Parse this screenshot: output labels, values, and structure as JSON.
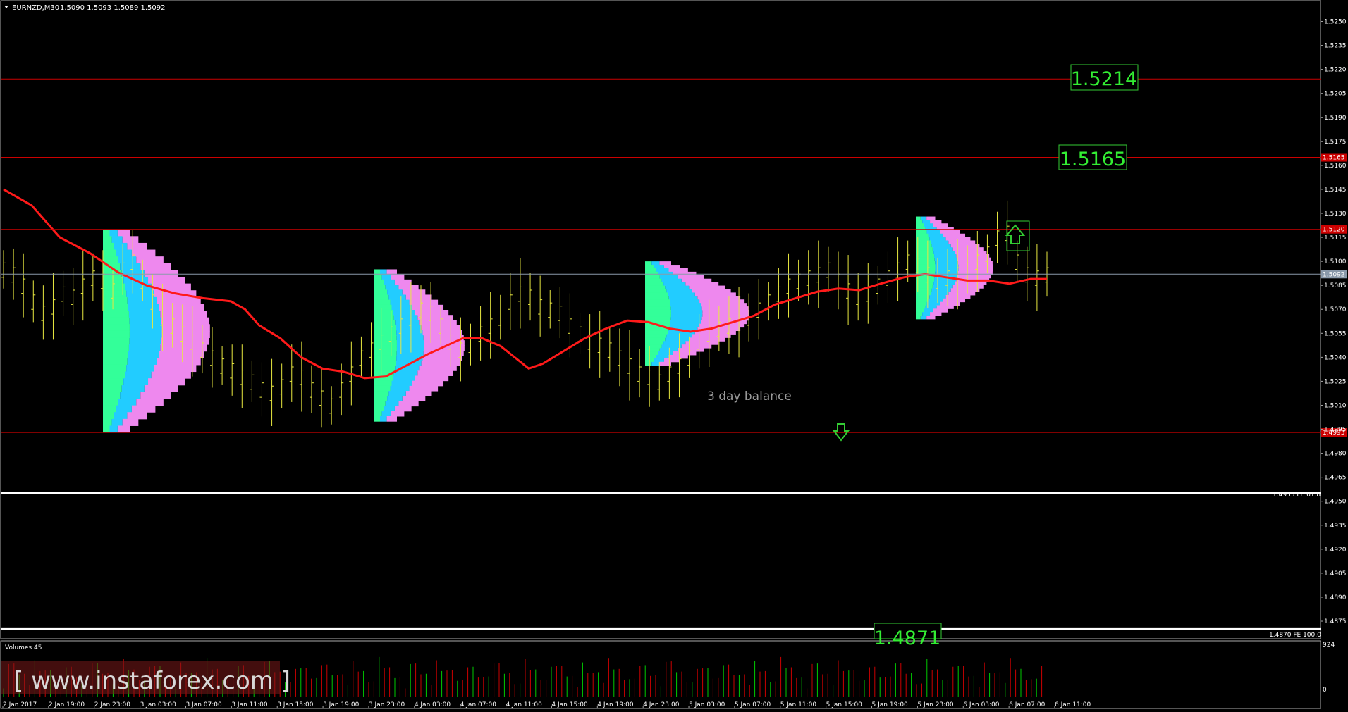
{
  "header": {
    "symbol": "EURNZD,M30",
    "ohlc": "1.5090 1.5093 1.5089 1.5092"
  },
  "annotations": {
    "level_label_1": "1.5214",
    "level_label_2": "1.5165",
    "level_label_3": "1.4871",
    "fe618": "1.4955  FE 61.8",
    "fe100": "1.4870  FE 100.0",
    "balance_text": "3 day balance"
  },
  "volume_panel": {
    "title": "Volumes 45",
    "max_label": "924",
    "zero_label": "0"
  },
  "watermark": "[ www.instaforex.com ]",
  "chart_data": {
    "type": "ohlc",
    "title": "EURNZD,M30",
    "timeframe": "M30",
    "ylim": [
      1.4864,
      1.5263
    ],
    "y_ticks": [
      "1.5250",
      "1.5235",
      "1.5220",
      "1.5205",
      "1.5190",
      "1.5175",
      "1.5160",
      "1.5145",
      "1.5130",
      "1.5115",
      "1.5100",
      "1.5085",
      "1.5070",
      "1.5055",
      "1.5040",
      "1.5025",
      "1.5010",
      "1.4995",
      "1.4980",
      "1.4965",
      "1.4950",
      "1.4935",
      "1.4920",
      "1.4905",
      "1.4890",
      "1.4875"
    ],
    "x_ticks": [
      "2 Jan 2017",
      "2 Jan 19:00",
      "2 Jan 23:00",
      "3 Jan 03:00",
      "3 Jan 07:00",
      "3 Jan 11:00",
      "3 Jan 15:00",
      "3 Jan 19:00",
      "3 Jan 23:00",
      "4 Jan 03:00",
      "4 Jan 07:00",
      "4 Jan 11:00",
      "4 Jan 15:00",
      "4 Jan 19:00",
      "4 Jan 23:00",
      "5 Jan 03:00",
      "5 Jan 07:00",
      "5 Jan 11:00",
      "5 Jan 15:00",
      "5 Jan 19:00",
      "5 Jan 23:00",
      "6 Jan 03:00",
      "6 Jan 07:00",
      "6 Jan 11:00"
    ],
    "horizontal_lines": [
      {
        "price": 1.5214,
        "color": "#cc0000"
      },
      {
        "price": 1.5165,
        "color": "#cc0000",
        "axis_label": "1.5165"
      },
      {
        "price": 1.512,
        "color": "#cc0000",
        "axis_label": "1.5120"
      },
      {
        "price": 1.5092,
        "color": "#8a99aa",
        "axis_label": "1.5092"
      },
      {
        "price": 1.4993,
        "color": "#cc0000",
        "axis_label": "1.4993"
      },
      {
        "price": 1.4955,
        "color": "#ffffff"
      },
      {
        "price": 1.487,
        "color": "#ffffff"
      }
    ],
    "moving_average": {
      "color": "#ff1a1a",
      "points": [
        [
          0,
          1.5145
        ],
        [
          12,
          1.5135
        ],
        [
          24,
          1.5115
        ],
        [
          37,
          1.5105
        ],
        [
          49,
          1.5093
        ],
        [
          61,
          1.5085
        ],
        [
          73,
          1.508
        ],
        [
          85,
          1.5077
        ],
        [
          97,
          1.5075
        ],
        [
          103,
          1.507
        ],
        [
          109,
          1.506
        ],
        [
          118,
          1.5052
        ],
        [
          127,
          1.504
        ],
        [
          136,
          1.5033
        ],
        [
          145,
          1.5031
        ],
        [
          154,
          1.5027
        ],
        [
          163,
          1.5028
        ],
        [
          172,
          1.5035
        ],
        [
          181,
          1.5042
        ],
        [
          190,
          1.5048
        ],
        [
          196,
          1.5052
        ],
        [
          204,
          1.5052
        ],
        [
          212,
          1.5047
        ],
        [
          218,
          1.504
        ],
        [
          224,
          1.5033
        ],
        [
          230,
          1.5036
        ],
        [
          239,
          1.5044
        ],
        [
          248,
          1.5052
        ],
        [
          257,
          1.5058
        ],
        [
          266,
          1.5063
        ],
        [
          275,
          1.5062
        ],
        [
          284,
          1.5058
        ],
        [
          293,
          1.5056
        ],
        [
          302,
          1.5058
        ],
        [
          311,
          1.5062
        ],
        [
          320,
          1.5066
        ],
        [
          329,
          1.5073
        ],
        [
          338,
          1.5077
        ],
        [
          347,
          1.5081
        ],
        [
          356,
          1.5083
        ],
        [
          365,
          1.5082
        ],
        [
          374,
          1.5086
        ],
        [
          384,
          1.509
        ],
        [
          393,
          1.5092
        ],
        [
          402,
          1.509
        ],
        [
          411,
          1.5088
        ],
        [
          420,
          1.5088
        ],
        [
          429,
          1.5086
        ],
        [
          438,
          1.5089
        ],
        [
          445,
          1.5089
        ]
      ]
    },
    "candles_seed": [
      1.5095,
      1.5092,
      1.5085,
      1.5075,
      1.5068,
      1.5072,
      1.508,
      1.5078,
      1.5085,
      1.509,
      1.5088,
      1.5082,
      1.5095,
      1.51,
      1.5088,
      1.5075,
      1.5065,
      1.506,
      1.5055,
      1.505,
      1.5045,
      1.504,
      1.5035,
      1.5032,
      1.5028,
      1.5025,
      1.502,
      1.5018,
      1.5022,
      1.503,
      1.5028,
      1.502,
      1.5015,
      1.501,
      1.502,
      1.503,
      1.504,
      1.5045,
      1.505,
      1.5055,
      1.506,
      1.5065,
      1.507,
      1.5068,
      1.506,
      1.505,
      1.5045,
      1.5048,
      1.5055,
      1.506,
      1.5065,
      1.5075,
      1.508,
      1.5078,
      1.5072,
      1.507,
      1.5068,
      1.506,
      1.5055,
      1.505,
      1.5048,
      1.5045,
      1.504,
      1.5035,
      1.503,
      1.5028,
      1.5025,
      1.503,
      1.5035,
      1.504,
      1.505,
      1.5055,
      1.5058,
      1.506,
      1.5062,
      1.5065,
      1.507,
      1.5075,
      1.508,
      1.5085,
      1.5088,
      1.509,
      1.5092,
      1.5095,
      1.5088,
      1.5082,
      1.5078,
      1.508,
      1.5085,
      1.509,
      1.5095,
      1.51,
      1.5098,
      1.5092,
      1.5088,
      1.509,
      1.5092,
      1.5095,
      1.51,
      1.5105,
      1.5115,
      1.5118,
      1.51,
      1.5092,
      1.509,
      1.5092
    ],
    "volume_profiles": [
      {
        "price_high": 1.512,
        "price_low": 1.4993
      },
      {
        "price_high": 1.5095,
        "price_low": 1.5
      },
      {
        "price_high": 1.51,
        "price_low": 1.5035
      },
      {
        "price_high": 1.5128,
        "price_low": 1.5064
      }
    ],
    "arrows": [
      {
        "type": "down",
        "price": 1.4993
      },
      {
        "type": "up",
        "price": 1.5105
      }
    ],
    "volume_max": 924
  }
}
